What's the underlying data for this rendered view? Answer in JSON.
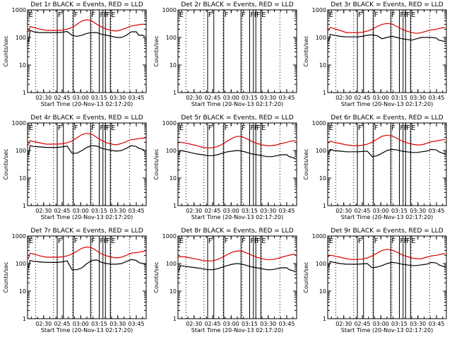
{
  "chart_data": {
    "type": "line",
    "layout": "3x3 grid",
    "xlabel": "Start Time (20-Nov-13 02:17:20)",
    "ylabel": "Counts/sec",
    "y_scale": "log",
    "ylim": [
      1,
      1000
    ],
    "y_ticks": [
      1,
      10,
      100,
      1000
    ],
    "y_tick_labels": [
      "1",
      "10",
      "100",
      "1000"
    ],
    "xlim_minutes": [
      0,
      96
    ],
    "x_tick_minutes": [
      13,
      28,
      43,
      58,
      73,
      88
    ],
    "x_tick_labels": [
      "02:30",
      "02:45",
      "03:00",
      "03:15",
      "03:30",
      "03:45"
    ],
    "dotted_line_minutes": [
      6.5,
      21,
      36.5,
      52,
      67.5,
      82.5
    ],
    "flag_line_minutes": [
      24,
      29,
      37,
      51,
      58,
      61,
      63,
      67
    ],
    "flag_labels": [
      {
        "text": "E",
        "minute": 1
      },
      {
        "text": "F",
        "minute": 24.5
      },
      {
        "text": "F",
        "minute": 37.5
      },
      {
        "text": "F",
        "minute": 51.5
      },
      {
        "text": "F",
        "minute": 58.5
      },
      {
        "text": "F",
        "minute": 61.5
      },
      {
        "text": "F",
        "minute": 63.5
      },
      {
        "text": "E",
        "minute": 67.5
      }
    ],
    "series_legend": {
      "black": "Events",
      "red": "LLD"
    },
    "line_colors": {
      "events": "#000000",
      "lld": "#dd0000"
    },
    "panels": [
      {
        "title": "Det 1r BLACK = Events, RED = LLD",
        "events": {
          "x": [
            0,
            1,
            2,
            5,
            10,
            15,
            20,
            24,
            28,
            32,
            36,
            40,
            44,
            48,
            52,
            56,
            60,
            64,
            68,
            72,
            76,
            80,
            84,
            88,
            90,
            93,
            95
          ],
          "y": [
            70,
            75,
            180,
            160,
            150,
            150,
            150,
            150,
            155,
            165,
            120,
            110,
            120,
            140,
            150,
            150,
            130,
            120,
            110,
            100,
            100,
            120,
            160,
            160,
            120,
            120,
            110
          ]
        },
        "lld": {
          "x": [
            0,
            1,
            2,
            5,
            10,
            15,
            20,
            24,
            28,
            32,
            36,
            40,
            44,
            48,
            52,
            56,
            60,
            64,
            68,
            72,
            76,
            80,
            84,
            88,
            92,
            95
          ],
          "y": [
            160,
            170,
            250,
            230,
            200,
            180,
            180,
            180,
            185,
            200,
            230,
            300,
            400,
            440,
            400,
            300,
            240,
            200,
            180,
            170,
            190,
            220,
            260,
            280,
            300,
            300
          ]
        }
      },
      {
        "title": "Det 2r BLACK = Events, RED = LLD",
        "events": {
          "x": [],
          "y": []
        },
        "lld": {
          "x": [],
          "y": []
        }
      },
      {
        "title": "Det 3r BLACK = Events, RED = LLD",
        "events": {
          "x": [
            0,
            1,
            2,
            5,
            10,
            15,
            20,
            24,
            28,
            32,
            36,
            40,
            44,
            48,
            52,
            56,
            60,
            64,
            68,
            72,
            76,
            80,
            84,
            88,
            90,
            93,
            95
          ],
          "y": [
            75,
            80,
            130,
            120,
            110,
            105,
            105,
            105,
            110,
            120,
            125,
            115,
            90,
            100,
            110,
            100,
            90,
            85,
            80,
            90,
            100,
            100,
            100,
            95,
            80,
            75,
            70
          ]
        },
        "lld": {
          "x": [
            0,
            1,
            2,
            5,
            10,
            15,
            20,
            24,
            28,
            32,
            36,
            40,
            44,
            48,
            52,
            56,
            60,
            64,
            68,
            72,
            76,
            80,
            84,
            88,
            92,
            95
          ],
          "y": [
            180,
            190,
            230,
            210,
            180,
            150,
            150,
            150,
            155,
            170,
            200,
            250,
            300,
            320,
            310,
            250,
            200,
            170,
            150,
            140,
            150,
            170,
            190,
            200,
            220,
            230
          ]
        }
      },
      {
        "title": "Det 4r BLACK = Events, RED = LLD",
        "events": {
          "x": [
            0,
            1,
            2,
            5,
            10,
            15,
            20,
            24,
            28,
            32,
            36,
            40,
            44,
            48,
            52,
            56,
            60,
            64,
            68,
            72,
            76,
            80,
            84,
            88,
            90,
            93,
            95
          ],
          "y": [
            70,
            75,
            150,
            140,
            135,
            130,
            130,
            130,
            135,
            145,
            80,
            80,
            100,
            130,
            150,
            145,
            120,
            110,
            100,
            95,
            100,
            120,
            150,
            140,
            120,
            110,
            100
          ]
        },
        "lld": {
          "x": [
            0,
            1,
            2,
            5,
            10,
            15,
            20,
            24,
            28,
            32,
            36,
            40,
            44,
            48,
            52,
            56,
            60,
            64,
            68,
            72,
            76,
            80,
            84,
            88,
            92,
            95
          ],
          "y": [
            160,
            170,
            230,
            210,
            190,
            170,
            170,
            170,
            175,
            190,
            220,
            290,
            380,
            420,
            390,
            300,
            230,
            190,
            170,
            160,
            180,
            210,
            250,
            260,
            280,
            280
          ]
        }
      },
      {
        "title": "Det 5r BLACK = Events, RED = LLD",
        "events": {
          "x": [
            0,
            1,
            2,
            5,
            10,
            15,
            20,
            24,
            28,
            32,
            36,
            40,
            44,
            48,
            52,
            56,
            60,
            64,
            68,
            72,
            76,
            80,
            84,
            88,
            90,
            93,
            95
          ],
          "y": [
            70,
            75,
            100,
            95,
            85,
            75,
            70,
            65,
            65,
            70,
            80,
            90,
            95,
            100,
            95,
            85,
            75,
            70,
            65,
            60,
            60,
            65,
            70,
            70,
            60,
            55,
            50
          ]
        },
        "lld": {
          "x": [
            0,
            1,
            2,
            5,
            10,
            15,
            20,
            24,
            28,
            32,
            36,
            40,
            44,
            48,
            52,
            56,
            60,
            64,
            68,
            72,
            76,
            80,
            84,
            88,
            92,
            95
          ],
          "y": [
            190,
            195,
            200,
            190,
            170,
            150,
            130,
            125,
            125,
            140,
            170,
            220,
            280,
            330,
            320,
            260,
            210,
            180,
            160,
            150,
            150,
            160,
            180,
            200,
            220,
            230
          ]
        }
      },
      {
        "title": "Det 6r BLACK = Events, RED = LLD",
        "events": {
          "x": [
            0,
            1,
            2,
            5,
            10,
            15,
            20,
            24,
            28,
            32,
            36,
            40,
            44,
            48,
            52,
            56,
            60,
            64,
            68,
            72,
            76,
            80,
            84,
            88,
            90,
            93,
            95
          ],
          "y": [
            75,
            80,
            110,
            100,
            95,
            90,
            90,
            90,
            92,
            95,
            60,
            65,
            80,
            100,
            110,
            105,
            95,
            90,
            85,
            85,
            90,
            95,
            110,
            105,
            90,
            80,
            75
          ]
        },
        "lld": {
          "x": [
            0,
            1,
            2,
            5,
            10,
            15,
            20,
            24,
            28,
            32,
            36,
            40,
            44,
            48,
            52,
            56,
            60,
            64,
            68,
            72,
            76,
            80,
            84,
            88,
            92,
            95
          ],
          "y": [
            190,
            195,
            220,
            200,
            180,
            160,
            150,
            150,
            155,
            170,
            200,
            260,
            330,
            360,
            340,
            280,
            220,
            190,
            170,
            160,
            160,
            180,
            210,
            220,
            240,
            250
          ]
        }
      },
      {
        "title": "Det 7r BLACK = Events, RED = LLD",
        "events": {
          "x": [
            0,
            1,
            2,
            5,
            10,
            15,
            20,
            24,
            28,
            32,
            36,
            40,
            44,
            48,
            52,
            56,
            60,
            64,
            68,
            72,
            76,
            80,
            84,
            88,
            90,
            93,
            95
          ],
          "y": [
            70,
            75,
            130,
            120,
            115,
            110,
            110,
            110,
            115,
            125,
            60,
            60,
            70,
            100,
            130,
            135,
            110,
            100,
            95,
            95,
            100,
            120,
            140,
            130,
            110,
            100,
            95
          ]
        },
        "lld": {
          "x": [
            0,
            1,
            2,
            5,
            10,
            15,
            20,
            24,
            28,
            32,
            36,
            40,
            44,
            48,
            52,
            56,
            60,
            64,
            68,
            72,
            76,
            80,
            84,
            88,
            92,
            95
          ],
          "y": [
            150,
            160,
            240,
            220,
            190,
            170,
            170,
            170,
            175,
            190,
            220,
            280,
            360,
            400,
            370,
            290,
            220,
            190,
            170,
            160,
            170,
            200,
            240,
            250,
            270,
            280
          ]
        }
      },
      {
        "title": "Det 8r BLACK = Events, RED = LLD",
        "events": {
          "x": [
            0,
            1,
            2,
            5,
            10,
            15,
            20,
            24,
            28,
            32,
            36,
            40,
            44,
            48,
            52,
            56,
            60,
            64,
            68,
            72,
            76,
            80,
            84,
            88,
            90,
            93,
            95
          ],
          "y": [
            55,
            60,
            85,
            80,
            75,
            70,
            65,
            60,
            60,
            65,
            75,
            85,
            95,
            100,
            95,
            85,
            75,
            70,
            65,
            60,
            60,
            65,
            70,
            70,
            60,
            55,
            50
          ]
        },
        "lld": {
          "x": [
            0,
            1,
            2,
            5,
            10,
            15,
            20,
            24,
            28,
            32,
            36,
            40,
            44,
            48,
            52,
            56,
            60,
            64,
            68,
            72,
            76,
            80,
            84,
            88,
            92,
            95
          ],
          "y": [
            170,
            175,
            180,
            175,
            160,
            145,
            130,
            125,
            125,
            140,
            170,
            210,
            260,
            290,
            280,
            240,
            200,
            170,
            150,
            140,
            140,
            150,
            170,
            190,
            210,
            220
          ]
        }
      },
      {
        "title": "Det 9r BLACK = Events, RED = LLD",
        "events": {
          "x": [
            0,
            1,
            2,
            5,
            10,
            15,
            20,
            24,
            28,
            32,
            36,
            40,
            44,
            48,
            52,
            56,
            60,
            64,
            68,
            72,
            76,
            80,
            84,
            88,
            90,
            93,
            95
          ],
          "y": [
            75,
            80,
            120,
            110,
            100,
            95,
            95,
            95,
            97,
            100,
            70,
            75,
            85,
            100,
            110,
            105,
            95,
            90,
            85,
            85,
            90,
            95,
            110,
            105,
            90,
            80,
            75
          ]
        },
        "lld": {
          "x": [
            0,
            1,
            2,
            5,
            10,
            15,
            20,
            24,
            28,
            32,
            36,
            40,
            44,
            48,
            52,
            56,
            60,
            64,
            68,
            72,
            76,
            80,
            84,
            88,
            92,
            95
          ],
          "y": [
            180,
            185,
            200,
            190,
            170,
            150,
            140,
            140,
            145,
            160,
            190,
            240,
            300,
            330,
            310,
            260,
            210,
            180,
            160,
            150,
            150,
            170,
            190,
            200,
            220,
            230
          ]
        }
      }
    ]
  }
}
